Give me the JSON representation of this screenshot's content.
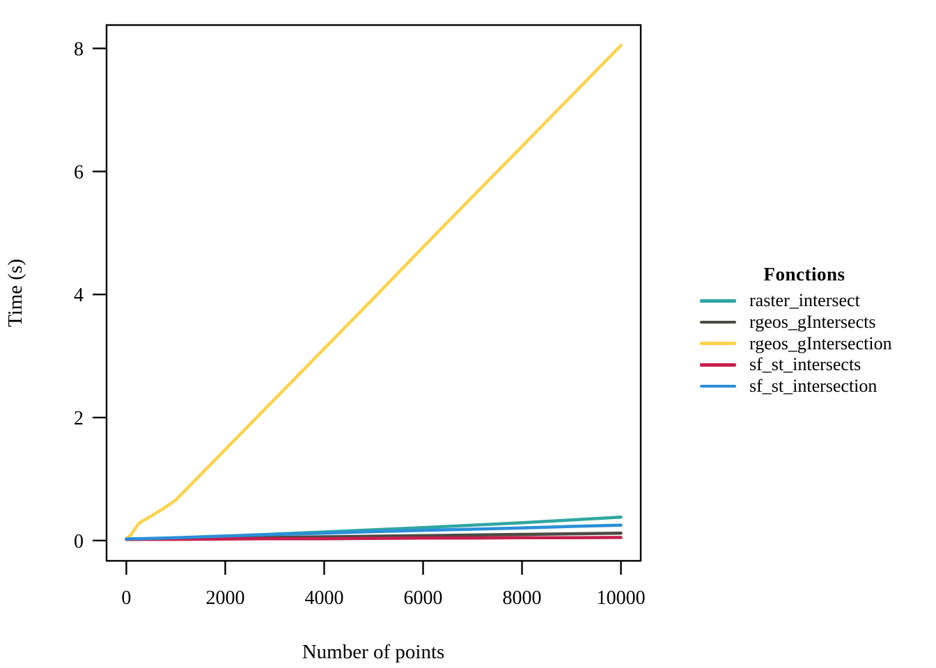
{
  "chart_data": {
    "type": "line",
    "title": "",
    "xlabel": "Number of points",
    "ylabel": "Time (s)",
    "xticks": [
      0,
      2000,
      4000,
      6000,
      8000,
      10000
    ],
    "yticks": [
      0,
      2,
      4,
      6,
      8
    ],
    "xlim": [
      -400,
      10400
    ],
    "ylim": [
      -0.33,
      8.38
    ],
    "grid": false,
    "legend_title": "Fonctions",
    "legend_position": "right",
    "x": [
      1,
      100,
      250,
      500,
      750,
      1000,
      2000,
      3000,
      4000,
      5000,
      6000,
      7000,
      8000,
      9000,
      10000
    ],
    "series": [
      {
        "name": "raster_intersect",
        "color": "#2fa6a2",
        "values": [
          0.02,
          0.02,
          0.025,
          0.03,
          0.035,
          0.04,
          0.07,
          0.105,
          0.14,
          0.175,
          0.21,
          0.25,
          0.29,
          0.335,
          0.38
        ]
      },
      {
        "name": "rgeos_gIntersects",
        "color": "#4c4a42",
        "values": [
          0.02,
          0.02,
          0.02,
          0.025,
          0.025,
          0.03,
          0.04,
          0.05,
          0.06,
          0.07,
          0.08,
          0.09,
          0.1,
          0.11,
          0.12
        ]
      },
      {
        "name": "rgeos_gIntersection",
        "color": "#fbd34b",
        "values": [
          0.03,
          0.1,
          0.28,
          0.4,
          0.52,
          0.66,
          1.48,
          2.3,
          3.12,
          3.94,
          4.77,
          5.59,
          6.41,
          7.23,
          8.05
        ]
      },
      {
        "name": "sf_st_intersects",
        "color": "#c71f4f",
        "values": [
          0.02,
          0.02,
          0.02,
          0.02,
          0.02,
          0.02,
          0.025,
          0.03,
          0.03,
          0.035,
          0.04,
          0.04,
          0.045,
          0.045,
          0.05
        ]
      },
      {
        "name": "sf_st_intersection",
        "color": "#2a8fd8",
        "values": [
          0.025,
          0.03,
          0.03,
          0.035,
          0.04,
          0.045,
          0.075,
          0.1,
          0.12,
          0.145,
          0.165,
          0.185,
          0.205,
          0.23,
          0.25
        ]
      }
    ]
  }
}
